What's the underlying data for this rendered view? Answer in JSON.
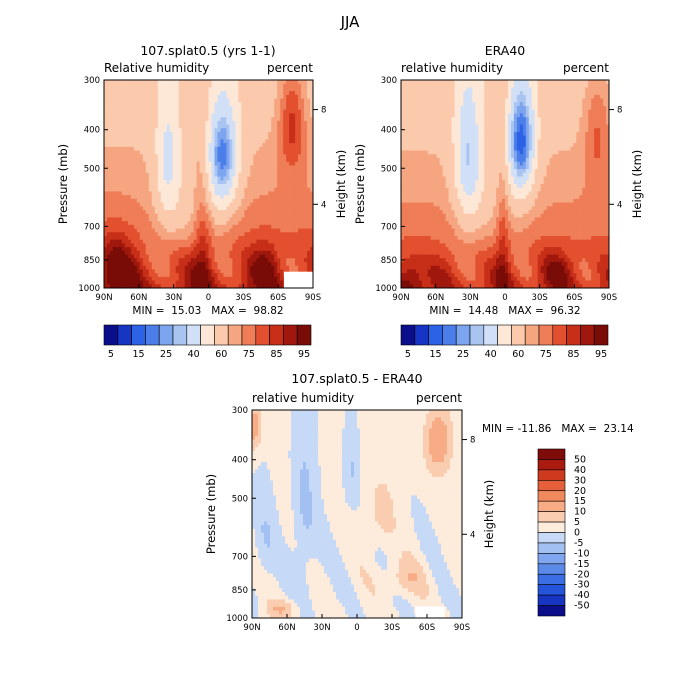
{
  "figure": {
    "title": "JJA"
  },
  "palettes": {
    "rh": [
      "#0a0e8a",
      "#1535c2",
      "#2b62e6",
      "#4b7ee8",
      "#7da4ee",
      "#a9c4f1",
      "#d1e0f6",
      "#fde8d8",
      "#fbc9ac",
      "#f6a581",
      "#ef7d57",
      "#e3502f",
      "#c72f18",
      "#a0180d",
      "#7a0c08"
    ],
    "diff": [
      "#0a0e8a",
      "#1535c2",
      "#2454dc",
      "#3b6ee5",
      "#5b8ae8",
      "#7fa6ee",
      "#a2c0f2",
      "#c6d9f6",
      "#fdebdc",
      "#fbcdb0",
      "#f8ac86",
      "#f08a5d",
      "#e55f3a",
      "#cd3a1d",
      "#a81b0e",
      "#7f0c08"
    ]
  },
  "chart_data": [
    {
      "type": "heatmap",
      "id": "model",
      "title": "107.splat0.5 (yrs 1-1)",
      "left_label": "Relative humidity",
      "right_label": "percent",
      "xlabel": "",
      "ylabel": "Pressure (mb)",
      "y2label": "Height (km)",
      "xticks": [
        "90N",
        "60N",
        "30N",
        "0",
        "30S",
        "60S",
        "90S"
      ],
      "x_range": [
        90,
        -90
      ],
      "y_range": [
        1000,
        300
      ],
      "y_log": true,
      "yticks": [
        300,
        400,
        500,
        700,
        850,
        1000
      ],
      "y2ticks": [
        "8",
        "4"
      ],
      "stats": "MIN =  15.03   MAX =  98.82",
      "colorbar_labels": [
        "5",
        "15",
        "25",
        "40",
        "60",
        "75",
        "85",
        "95"
      ],
      "levels": [
        5,
        10,
        15,
        20,
        25,
        30,
        40,
        50,
        60,
        65,
        70,
        75,
        80,
        85,
        90,
        95
      ],
      "missing": {
        "lat": [
          -65,
          -90
        ],
        "p": [
          910,
          1000
        ]
      }
    },
    {
      "type": "heatmap",
      "id": "era40",
      "title": "ERA40",
      "left_label": "relative humidity",
      "right_label": "percent",
      "xlabel": "",
      "ylabel": "Pressure (mb)",
      "y2label": "Height (km)",
      "xticks": [
        "90N",
        "60N",
        "30N",
        "0",
        "30S",
        "60S",
        "90S"
      ],
      "x_range": [
        90,
        -90
      ],
      "y_range": [
        1000,
        300
      ],
      "y_log": true,
      "yticks": [
        300,
        400,
        500,
        700,
        850,
        1000
      ],
      "y2ticks": [
        "8",
        "4"
      ],
      "stats": "MIN =  14.48   MAX =  96.32",
      "colorbar_labels": [
        "5",
        "15",
        "25",
        "40",
        "60",
        "75",
        "85",
        "95"
      ],
      "levels": [
        5,
        10,
        15,
        20,
        25,
        30,
        40,
        50,
        60,
        65,
        70,
        75,
        80,
        85,
        90,
        95
      ]
    },
    {
      "type": "heatmap",
      "id": "diff",
      "title": "107.splat0.5 - ERA40",
      "left_label": "relative humidity",
      "right_label": "percent",
      "xlabel": "",
      "ylabel": "Pressure (mb)",
      "y2label": "Height (km)",
      "xticks": [
        "90N",
        "60N",
        "30N",
        "0",
        "30S",
        "60S",
        "90S"
      ],
      "x_range": [
        90,
        -90
      ],
      "y_range": [
        1000,
        300
      ],
      "y_log": true,
      "yticks": [
        300,
        400,
        500,
        700,
        850,
        1000
      ],
      "y2ticks": [
        "8",
        "4"
      ],
      "stats": "MIN = -11.86   MAX =  23.14",
      "colorbar_labels": [
        "50",
        "40",
        "30",
        "20",
        "15",
        "10",
        "5",
        "0",
        "-5",
        "-10",
        "-15",
        "-20",
        "-30",
        "-40",
        "-50"
      ],
      "levels": [
        -50,
        -40,
        -30,
        -20,
        -15,
        -10,
        -5,
        0,
        5,
        10,
        15,
        20,
        30,
        40,
        50
      ],
      "missing": {
        "lat": [
          -50,
          -75
        ],
        "p": [
          935,
          1000
        ]
      }
    }
  ]
}
